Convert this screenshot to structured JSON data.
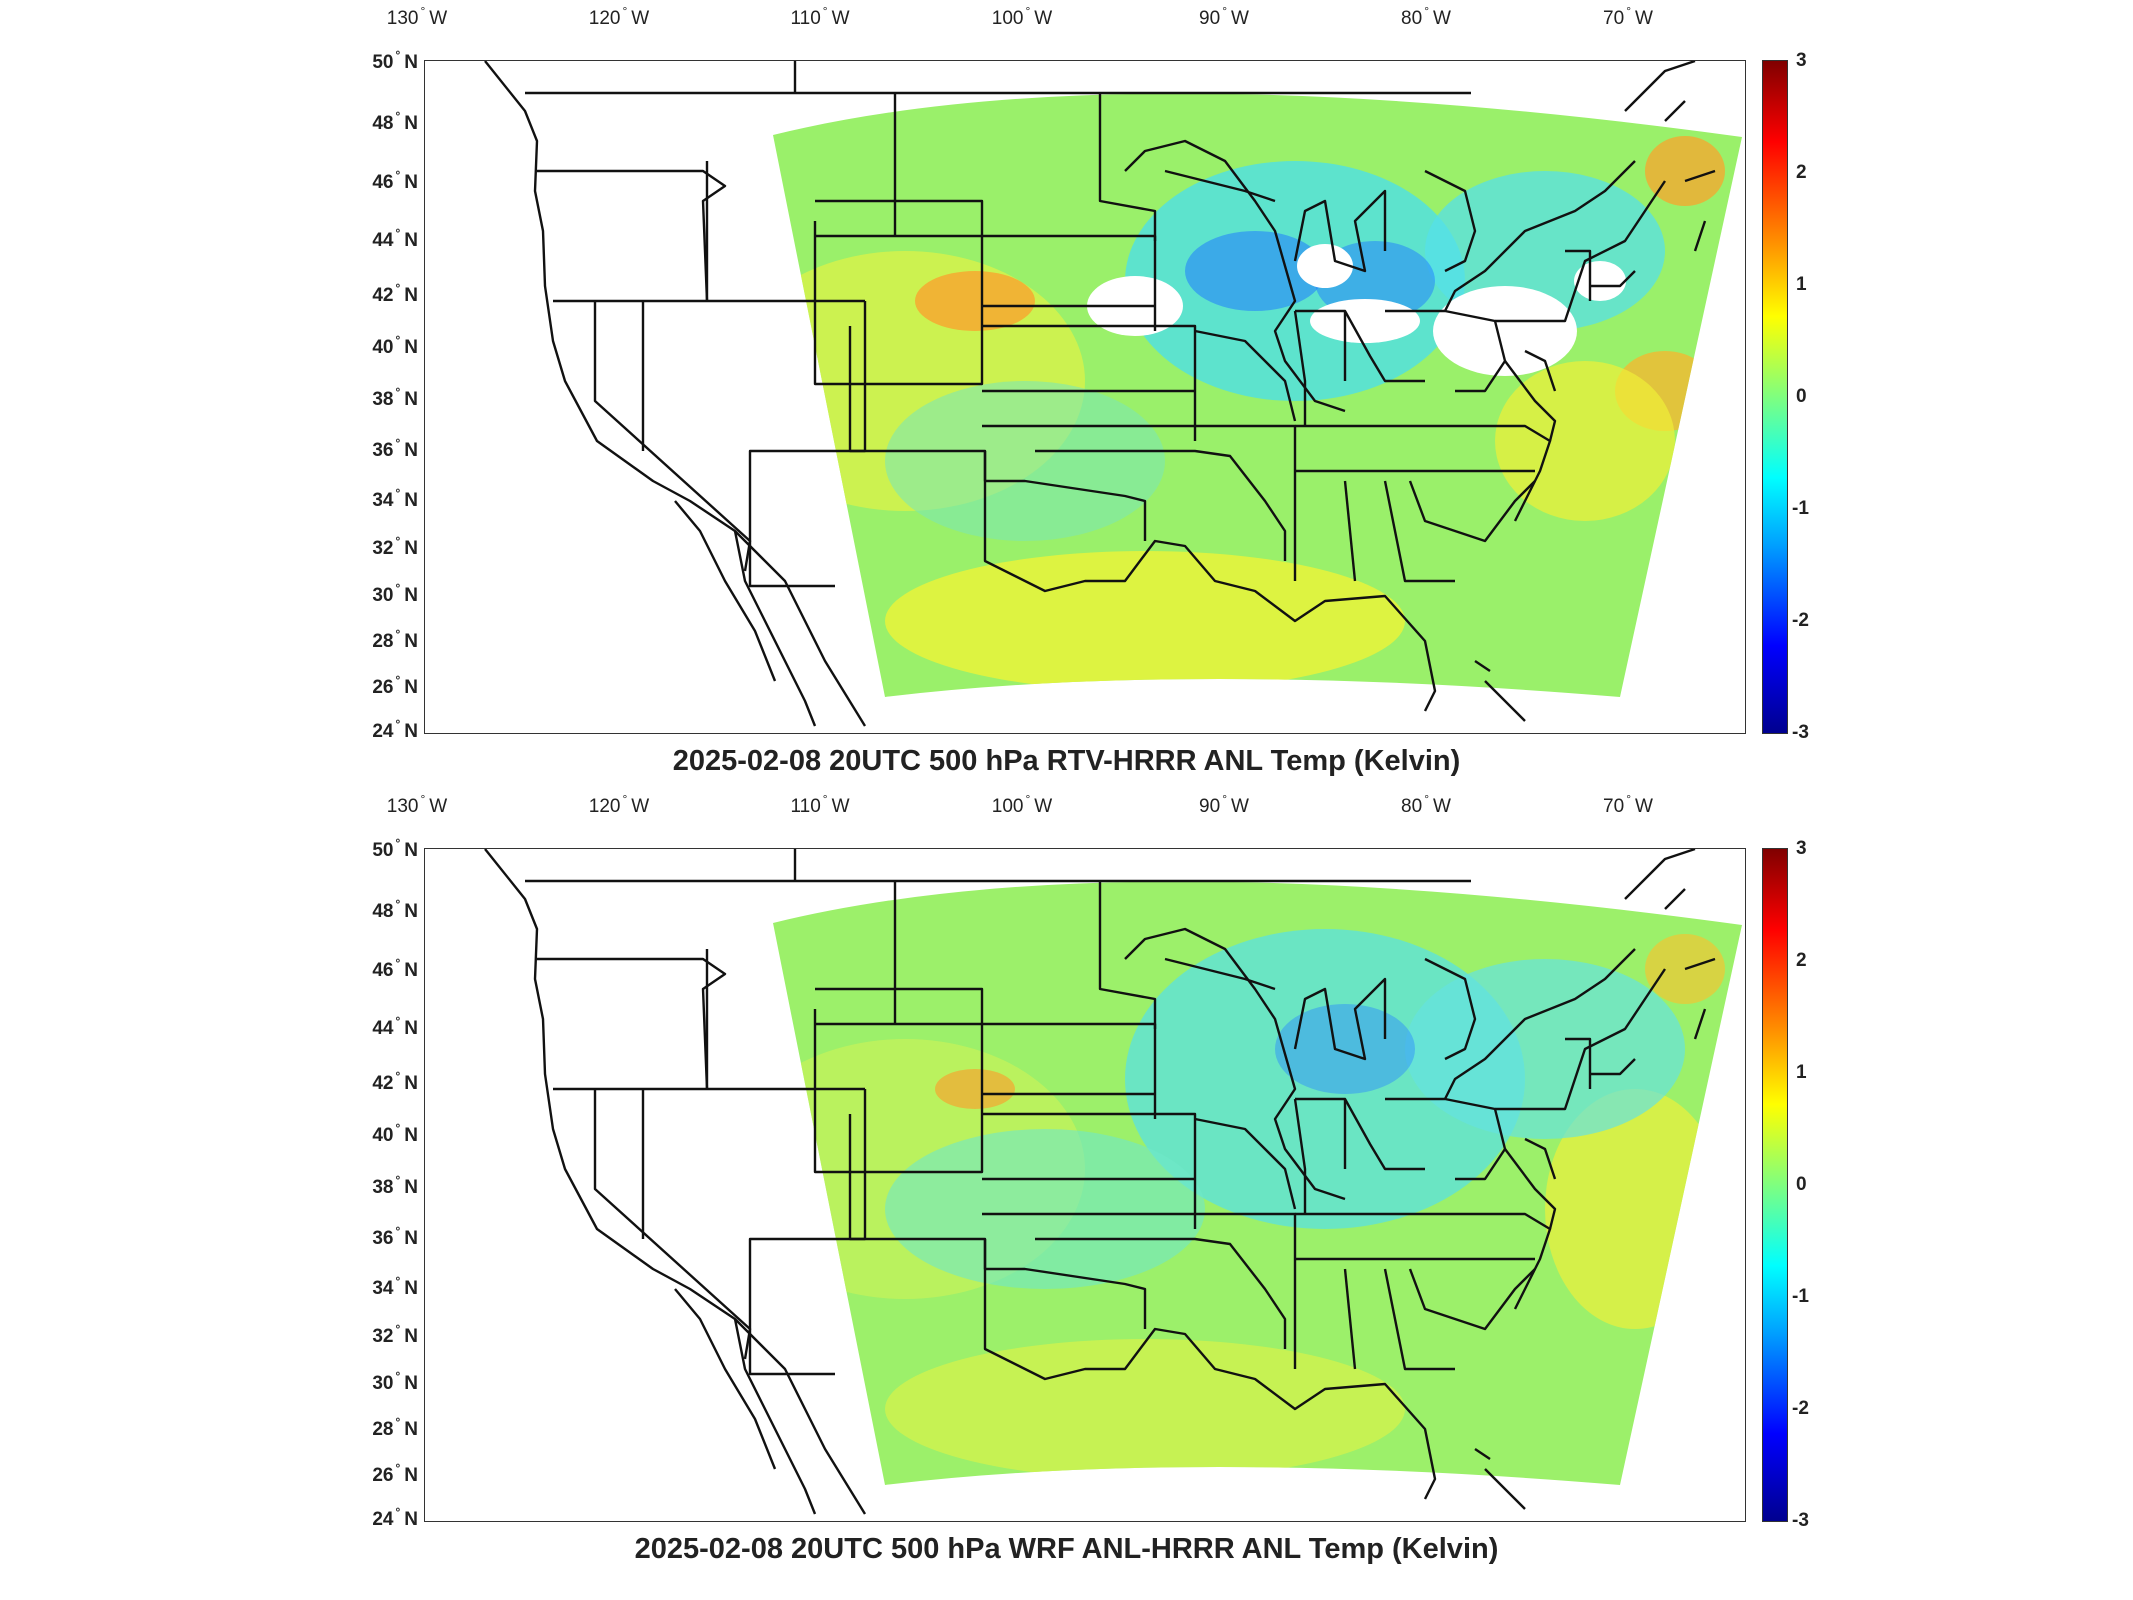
{
  "panels": [
    {
      "title": "2025-02-08 20UTC 500 hPa RTV-HRRR ANL Temp (Kelvin)",
      "lon_labels": [
        "130",
        "120",
        "110",
        "100",
        "90",
        "80",
        "70"
      ],
      "lon_suffix": "W",
      "lat_labels": [
        "50",
        "48",
        "46",
        "44",
        "42",
        "40",
        "38",
        "36",
        "34",
        "32",
        "30",
        "28",
        "26",
        "24"
      ],
      "lat_suffix": "N",
      "colorbar_labels": [
        "3",
        "2",
        "1",
        "0",
        "-1",
        "-2",
        "-3"
      ],
      "field_bias": "mixed",
      "has_missing_regions": true
    },
    {
      "title": "2025-02-08 20UTC 500 hPa WRF ANL-HRRR ANL Temp (Kelvin)",
      "lon_labels": [
        "130",
        "120",
        "110",
        "100",
        "90",
        "80",
        "70"
      ],
      "lon_suffix": "W",
      "lat_labels": [
        "50",
        "48",
        "46",
        "44",
        "42",
        "40",
        "38",
        "36",
        "34",
        "32",
        "30",
        "28",
        "26",
        "24"
      ],
      "lat_suffix": "N",
      "colorbar_labels": [
        "3",
        "2",
        "1",
        "0",
        "-1",
        "-2",
        "-3"
      ],
      "field_bias": "smooth",
      "has_missing_regions": false
    }
  ],
  "colormap": [
    "#00008f",
    "#0000ff",
    "#00a0ff",
    "#00ffff",
    "#7fff7f",
    "#ffff00",
    "#ff9000",
    "#ff0000",
    "#800000"
  ]
}
